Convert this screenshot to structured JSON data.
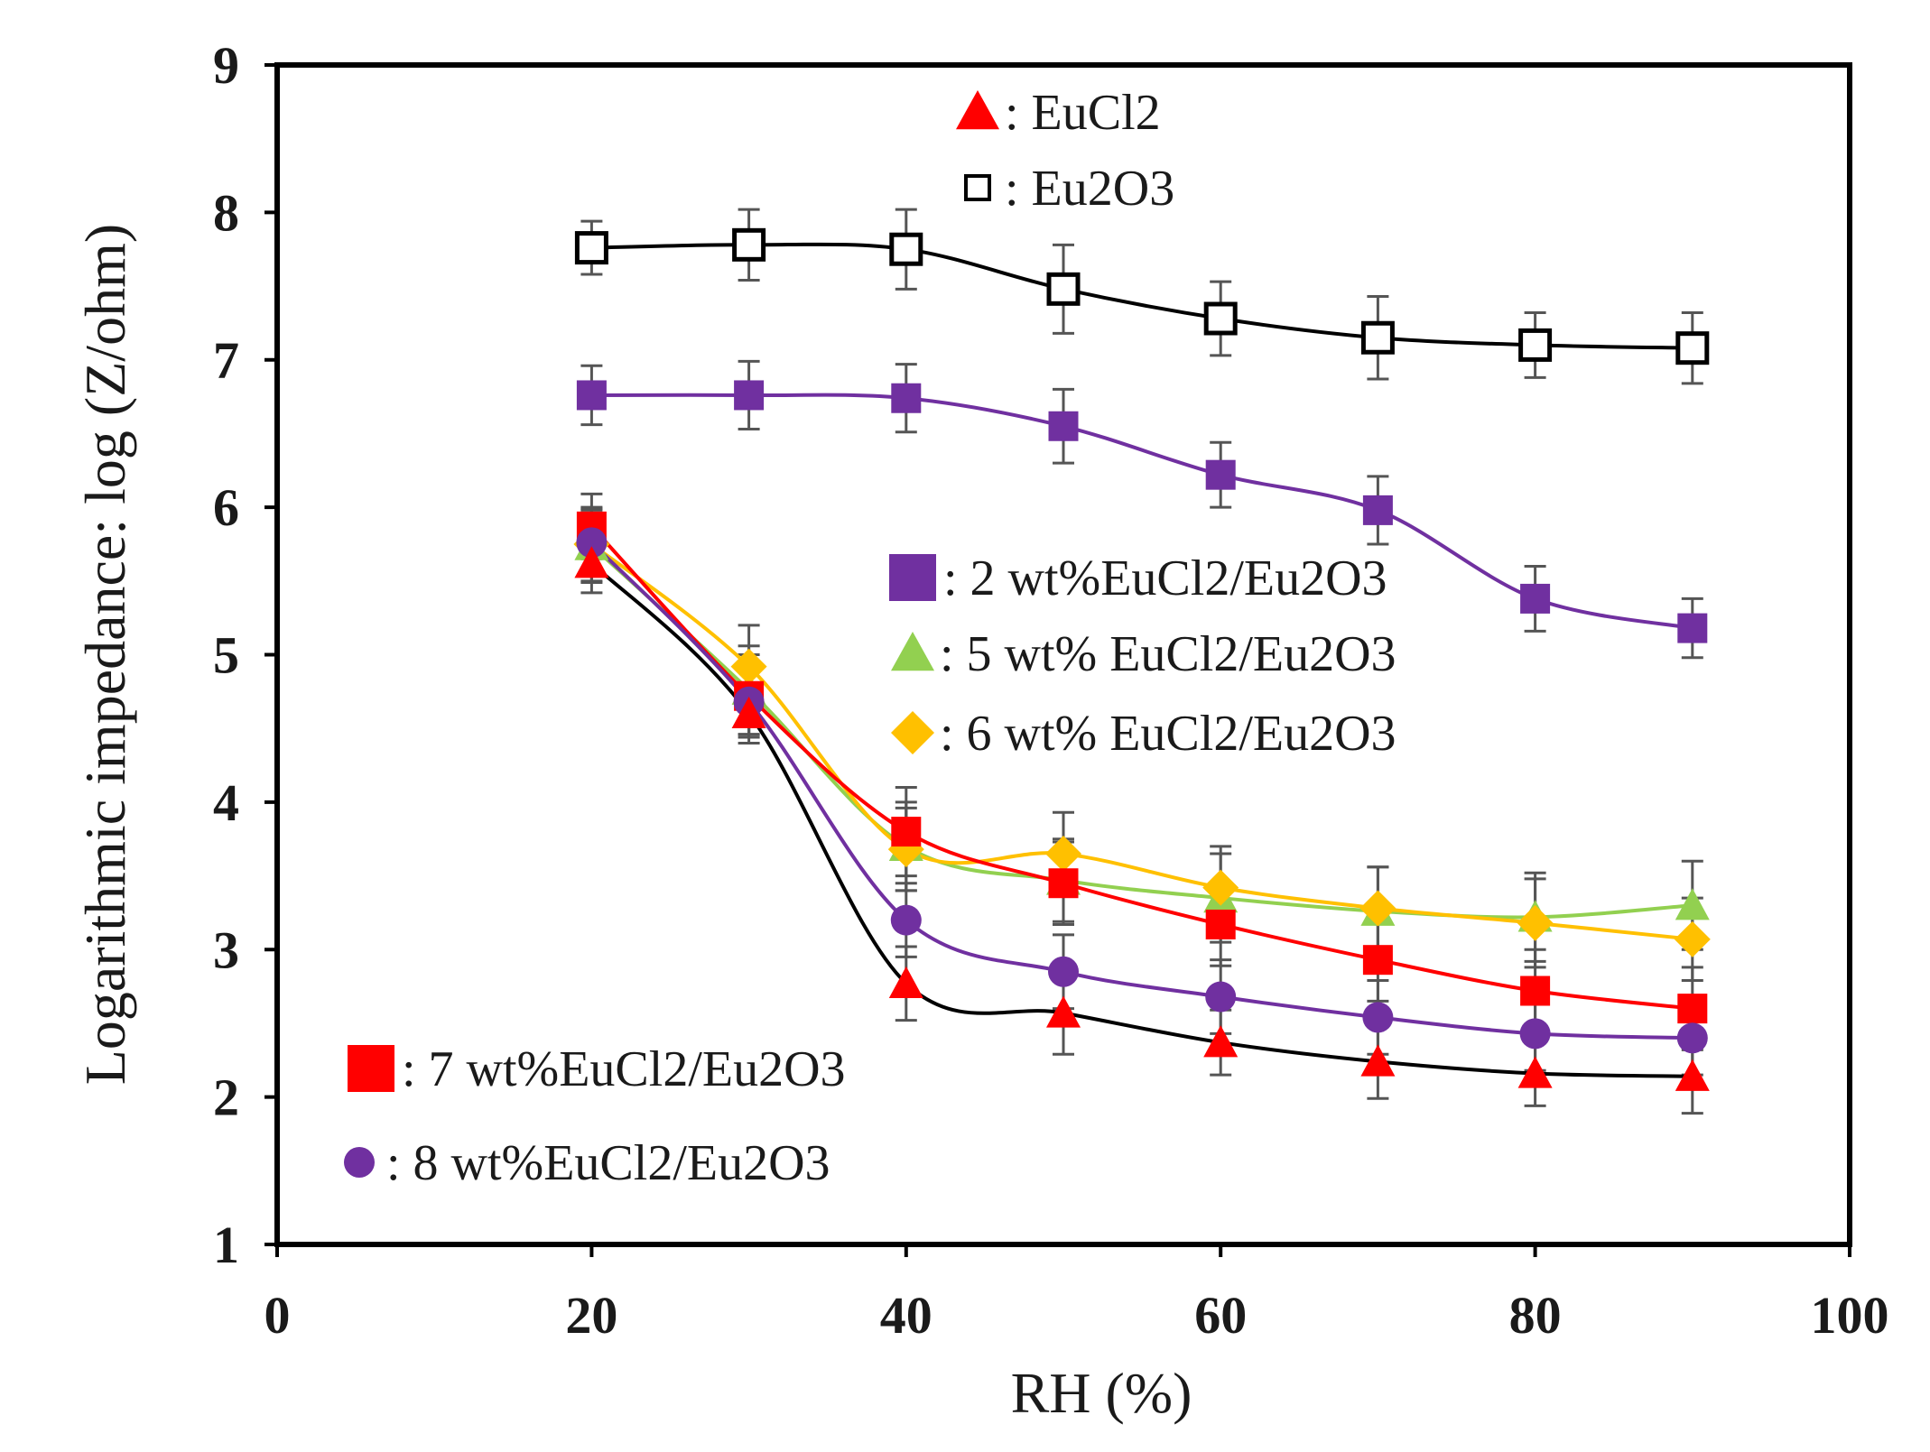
{
  "chart_data": {
    "type": "line",
    "xlabel": "RH (%)",
    "ylabel": "Logarithmic impedance: log (Z/ohm)",
    "xlim": [
      0,
      100
    ],
    "ylim": [
      1,
      9
    ],
    "xticks": [
      0,
      20,
      40,
      60,
      80,
      100
    ],
    "yticks": [
      1,
      2,
      3,
      4,
      5,
      6,
      7,
      8,
      9
    ],
    "grid": false,
    "x": [
      20,
      30,
      40,
      50,
      60,
      70,
      80,
      90
    ],
    "series": [
      {
        "name": "Eu2O3",
        "legend_label": ": Eu2O3",
        "marker": "square-open",
        "color": "#000000",
        "values": [
          7.76,
          7.78,
          7.75,
          7.48,
          7.28,
          7.15,
          7.1,
          7.08
        ],
        "error": [
          0.18,
          0.24,
          0.27,
          0.3,
          0.25,
          0.28,
          0.22,
          0.24
        ]
      },
      {
        "name": "2 wt%EuCl2/Eu2O3",
        "legend_label": ": 2 wt%EuCl2/Eu2O3",
        "marker": "square",
        "color": "#7030A0",
        "values": [
          6.76,
          6.76,
          6.74,
          6.55,
          6.22,
          5.98,
          5.38,
          5.18
        ],
        "error": [
          0.2,
          0.23,
          0.23,
          0.25,
          0.22,
          0.23,
          0.22,
          0.2
        ]
      },
      {
        "name": "5 wt% EuCl2/Eu2O3",
        "legend_label": ": 5 wt% EuCl2/Eu2O3",
        "marker": "triangle",
        "color": "#92D050",
        "values": [
          5.74,
          4.76,
          3.7,
          3.47,
          3.35,
          3.26,
          3.22,
          3.3
        ],
        "error": [
          0.25,
          0.3,
          0.3,
          0.28,
          0.3,
          0.3,
          0.3,
          0.3
        ]
      },
      {
        "name": "6 wt% EuCl2/Eu2O3",
        "legend_label": ": 6 wt% EuCl2/Eu2O3",
        "marker": "diamond",
        "color": "#FFC000",
        "values": [
          5.75,
          4.92,
          3.68,
          3.65,
          3.42,
          3.28,
          3.18,
          3.07
        ],
        "error": [
          0.25,
          0.28,
          0.28,
          0.28,
          0.28,
          0.28,
          0.3,
          0.28
        ]
      },
      {
        "name": "7 wt%EuCl2/Eu2O3",
        "legend_label": ": 7 wt%EuCl2/Eu2O3",
        "marker": "square",
        "color": "#FF0000",
        "values": [
          5.87,
          4.72,
          3.8,
          3.45,
          3.17,
          2.93,
          2.72,
          2.6
        ],
        "error": [
          0.22,
          0.28,
          0.3,
          0.28,
          0.28,
          0.28,
          0.28,
          0.28
        ]
      },
      {
        "name": "8 wt%EuCl2/Eu2O3",
        "legend_label": ": 8 wt%EuCl2/Eu2O3",
        "marker": "circle",
        "color": "#7030A0",
        "values": [
          5.76,
          4.68,
          3.2,
          2.85,
          2.68,
          2.54,
          2.43,
          2.4
        ],
        "error": [
          0.22,
          0.22,
          0.25,
          0.25,
          0.25,
          0.25,
          0.25,
          0.25
        ]
      },
      {
        "name": "EuCl2",
        "legend_label": ": EuCl2",
        "marker": "triangle",
        "color": "#FF0000",
        "values": [
          5.62,
          4.6,
          2.77,
          2.57,
          2.37,
          2.24,
          2.16,
          2.14
        ],
        "error": [
          0.2,
          0.2,
          0.25,
          0.28,
          0.22,
          0.25,
          0.22,
          0.25
        ]
      }
    ],
    "line_color_note": "EuCl2 series drawn with black connecting line",
    "line_colors": {
      "EuCl2": "#000000",
      "Eu2O3": "#000000"
    }
  }
}
